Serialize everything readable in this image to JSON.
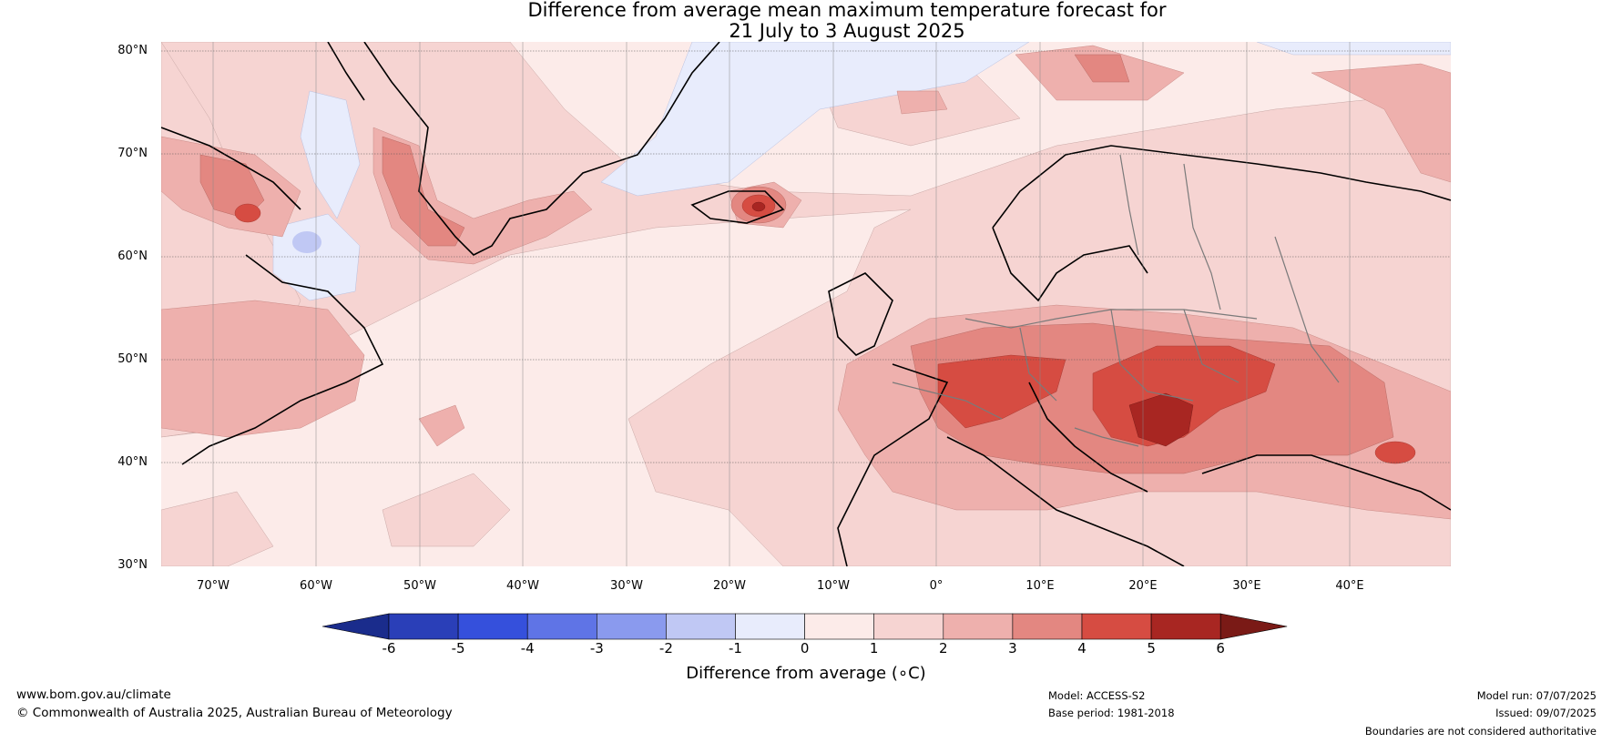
{
  "title": {
    "line1": "Difference from average mean maximum temperature forecast for",
    "line2": "21 July to 3 August 2025"
  },
  "axes": {
    "lat_labels": [
      "80°N",
      "70°N",
      "60°N",
      "50°N",
      "40°N",
      "30°N"
    ],
    "lon_labels": [
      "70°W",
      "60°W",
      "50°W",
      "40°W",
      "30°W",
      "20°W",
      "10°W",
      "0°",
      "10°E",
      "20°E",
      "30°E",
      "40°E"
    ]
  },
  "colorbar": {
    "label": "Difference from average (∘C)",
    "ticks": [
      "-6",
      "-5",
      "-4",
      "-3",
      "-2",
      "-1",
      "0",
      "1",
      "2",
      "3",
      "4",
      "5",
      "6"
    ],
    "colors": [
      "#1a2c8c",
      "#2a3fb8",
      "#3550dc",
      "#5f74e6",
      "#8a9aee",
      "#c0c8f4",
      "#e8ecfc",
      "#fcebe9",
      "#f6d4d2",
      "#eeb0ad",
      "#e38781",
      "#d64c42",
      "#a82622",
      "#7a1a16"
    ]
  },
  "footer": {
    "website": "www.bom.gov.au/climate",
    "copyright": "© Commonwealth of Australia 2025, Australian Bureau of Meteorology",
    "model": "Model: ACCESS-S2",
    "base_period": "Base period: 1981-2018",
    "model_run": "Model run: 07/07/2025",
    "issued": "Issued: 09/07/2025",
    "disclaimer": "Boundaries are not considered authoritative"
  }
}
